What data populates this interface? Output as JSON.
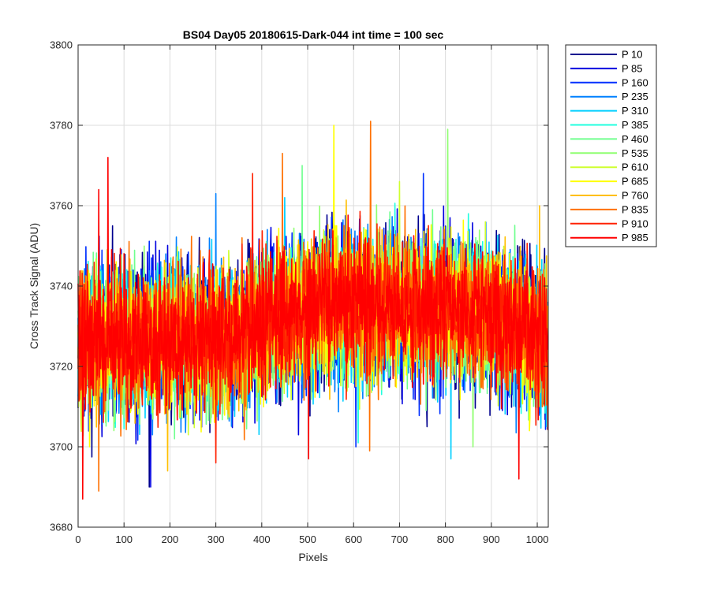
{
  "chart_data": {
    "type": "line",
    "title": "BS04 Day05 20180615-Dark-044 int time = 100 sec",
    "xlabel": "Pixels",
    "ylabel": "Cross Track Signal (ADU)",
    "xlim": [
      0,
      1024
    ],
    "ylim": [
      3680,
      3800
    ],
    "xticks": [
      0,
      100,
      200,
      300,
      400,
      500,
      600,
      700,
      800,
      900,
      1000
    ],
    "yticks": [
      3680,
      3700,
      3720,
      3740,
      3760,
      3780,
      3800
    ],
    "grid": true,
    "legend_position": "outside-right",
    "n_points": 1024,
    "series_stats_note_free": true,
    "mean_profile": {
      "x": [
        0,
        100,
        200,
        300,
        400,
        500,
        600,
        700,
        800,
        900,
        1024
      ],
      "y": [
        3727,
        3726,
        3727,
        3727,
        3730,
        3734,
        3736,
        3735,
        3735,
        3733,
        3726
      ]
    },
    "series": [
      {
        "name": "P 10",
        "color": "#00008F",
        "seed": 11,
        "spread": 9.5,
        "peaks": [
          [
            75,
            3755
          ],
          [
            155,
            3690
          ],
          [
            760,
            3705
          ]
        ]
      },
      {
        "name": "P 85",
        "color": "#0000DF",
        "seed": 23,
        "spread": 9.5,
        "peaks": [
          [
            158,
            3690
          ],
          [
            480,
            3703
          ],
          [
            935,
            3708
          ]
        ]
      },
      {
        "name": "P 160",
        "color": "#0030FF",
        "seed": 37,
        "spread": 9.0,
        "peaks": [
          [
            752,
            3768
          ],
          [
            605,
            3700
          ]
        ]
      },
      {
        "name": "P 235",
        "color": "#0080FF",
        "seed": 41,
        "spread": 9.0,
        "peaks": [
          [
            300,
            3763
          ],
          [
            620,
            3712
          ]
        ]
      },
      {
        "name": "P 310",
        "color": "#00CFFF",
        "seed": 53,
        "spread": 9.0,
        "peaks": [
          [
            812,
            3697
          ],
          [
            450,
            3762
          ]
        ]
      },
      {
        "name": "P 385",
        "color": "#20FFDF",
        "seed": 67,
        "spread": 8.5,
        "peaks": [
          [
            610,
            3701
          ],
          [
            850,
            3758
          ]
        ]
      },
      {
        "name": "P 460",
        "color": "#70FF8F",
        "seed": 71,
        "spread": 8.5,
        "peaks": [
          [
            488,
            3770
          ],
          [
            210,
            3702
          ]
        ]
      },
      {
        "name": "P 535",
        "color": "#8FFF70",
        "seed": 83,
        "spread": 8.5,
        "peaks": [
          [
            805,
            3779
          ],
          [
            860,
            3700
          ]
        ]
      },
      {
        "name": "P 610",
        "color": "#CFFF30",
        "seed": 97,
        "spread": 8.5,
        "peaks": [
          [
            240,
            3703
          ],
          [
            700,
            3766
          ]
        ]
      },
      {
        "name": "P 685",
        "color": "#FFFF00",
        "seed": 101,
        "spread": 8.5,
        "peaks": [
          [
            557,
            3780
          ],
          [
            25,
            3700
          ]
        ]
      },
      {
        "name": "P 760",
        "color": "#FFBF00",
        "seed": 113,
        "spread": 8.5,
        "peaks": [
          [
            195,
            3694
          ],
          [
            1005,
            3760
          ]
        ]
      },
      {
        "name": "P 835",
        "color": "#FF7000",
        "seed": 127,
        "spread": 8.5,
        "peaks": [
          [
            637,
            3781
          ],
          [
            445,
            3773
          ],
          [
            45,
            3689
          ],
          [
            635,
            3699
          ]
        ]
      },
      {
        "name": "P 910",
        "color": "#FF2000",
        "seed": 131,
        "spread": 8.5,
        "peaks": [
          [
            380,
            3768
          ],
          [
            300,
            3696
          ]
        ]
      },
      {
        "name": "P 985",
        "color": "#FF0000",
        "seed": 139,
        "spread": 8.0,
        "peaks": [
          [
            65,
            3772
          ],
          [
            45,
            3764
          ],
          [
            10,
            3687
          ],
          [
            960,
            3692
          ],
          [
            502,
            3697
          ]
        ]
      }
    ]
  }
}
